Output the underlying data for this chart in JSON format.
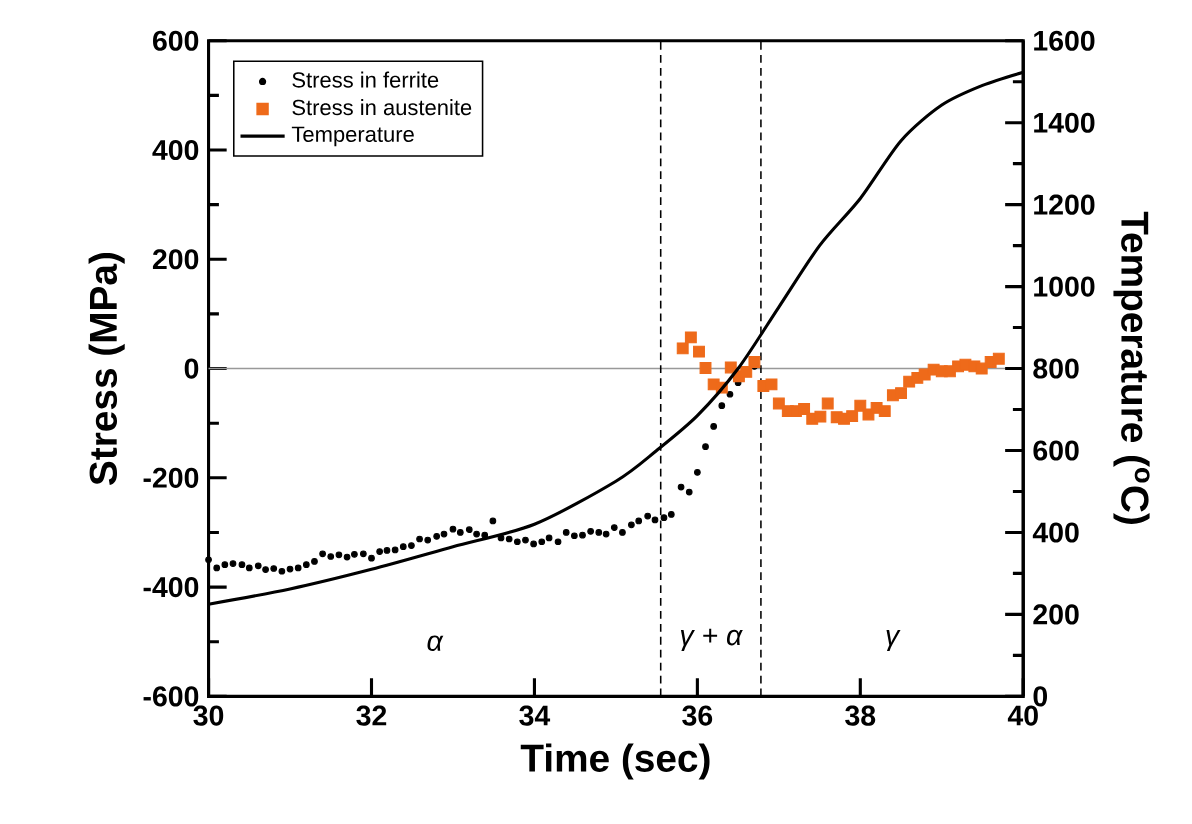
{
  "chart_data": {
    "type": "scatter",
    "xlabel": "Time (sec)",
    "ylabel": "Stress (MPa)",
    "y2label": "Temperature ($^{o}$C)",
    "xlim": [
      30,
      40
    ],
    "xticks": [
      30,
      32,
      34,
      36,
      38,
      40
    ],
    "ylim": [
      -600,
      600
    ],
    "yticks": [
      -600,
      -400,
      -200,
      0,
      200,
      400,
      600
    ],
    "y2lim": [
      0,
      1600
    ],
    "y2ticks": [
      0,
      200,
      400,
      600,
      800,
      1000,
      1200,
      1400,
      1600
    ],
    "legend": "top left",
    "series": [
      {
        "name": "Stress in ferrite",
        "marker": "circle",
        "color": "#000000",
        "x": [
          30.0,
          30.1,
          30.2,
          30.3,
          30.41,
          30.5,
          30.61,
          30.7,
          30.8,
          30.9,
          31.0,
          31.1,
          31.2,
          31.3,
          31.4,
          31.5,
          31.6,
          31.7,
          31.79,
          31.9,
          32.0,
          32.1,
          32.19,
          32.29,
          32.39,
          32.49,
          32.59,
          32.69,
          32.8,
          32.89,
          33.0,
          33.09,
          33.2,
          33.29,
          33.39,
          33.49,
          33.59,
          33.69,
          33.79,
          33.89,
          33.99,
          34.09,
          34.18,
          34.29,
          34.39,
          34.49,
          34.59,
          34.69,
          34.79,
          34.88,
          34.98,
          35.08,
          35.19,
          35.28,
          35.39,
          35.48,
          35.59,
          35.68,
          35.8,
          35.9,
          36.0,
          36.1,
          36.2,
          36.3,
          36.4,
          36.5,
          36.7
        ],
        "values": [
          -350,
          -365,
          -359,
          -357,
          -359,
          -365,
          -361,
          -368,
          -366,
          -371,
          -367,
          -365,
          -359,
          -353,
          -339,
          -344,
          -341,
          -345,
          -340,
          -339,
          -347,
          -335,
          -333,
          -332,
          -326,
          -324,
          -312,
          -314,
          -307,
          -303,
          -294,
          -300,
          -295,
          -303,
          -305,
          -279,
          -310,
          -312,
          -317,
          -314,
          -321,
          -317,
          -310,
          -317,
          -300,
          -306,
          -305,
          -298,
          -300,
          -303,
          -291,
          -300,
          -286,
          -279,
          -270,
          -277,
          -273,
          -267,
          -217,
          -226,
          -190,
          -143,
          -106,
          -68,
          -47,
          -26,
          4
        ]
      },
      {
        "name": "Stress in austenite",
        "marker": "square",
        "color": "#ee6a1a",
        "x": [
          35.82,
          35.92,
          36.02,
          36.1,
          36.2,
          36.3,
          36.41,
          36.51,
          36.6,
          36.7,
          36.81,
          36.91,
          37.0,
          37.11,
          37.21,
          37.31,
          37.41,
          37.51,
          37.6,
          37.71,
          37.8,
          37.9,
          38.0,
          38.1,
          38.2,
          38.3,
          38.4,
          38.5,
          38.6,
          38.7,
          38.79,
          38.9,
          39.0,
          39.1,
          39.2,
          39.29,
          39.4,
          39.49,
          39.6,
          39.7
        ],
        "values": [
          37,
          57,
          31,
          1,
          -29,
          -35,
          2,
          -14,
          -6,
          12,
          -32,
          -29,
          -64,
          -78,
          -78,
          -74,
          -92,
          -88,
          -64,
          -89,
          -92,
          -87,
          -68,
          -84,
          -72,
          -78,
          -49,
          -45,
          -24,
          -17,
          -11,
          -2,
          -5,
          -5,
          4,
          7,
          4,
          0,
          12,
          18
        ]
      },
      {
        "name": "Temperature",
        "type": "line",
        "marker": "none",
        "axis": "y2",
        "color": "#000000",
        "x": [
          30,
          31,
          32,
          33,
          34,
          35,
          35.5,
          36,
          36.5,
          37,
          37.5,
          38,
          38.5,
          39,
          39.5,
          40
        ],
        "values": [
          225,
          262,
          310,
          365,
          420,
          525,
          600,
          685,
          800,
          950,
          1100,
          1215,
          1356,
          1443,
          1491,
          1523
        ]
      }
    ],
    "ref_lines": [
      {
        "axis": "y",
        "value": 0,
        "color": "#999999",
        "line_style": "solid"
      },
      {
        "axis": "x",
        "value": 35.55,
        "color": "#000000",
        "line_style": "dashed"
      },
      {
        "axis": "x",
        "value": 36.78,
        "color": "#000000",
        "line_style": "dashed"
      }
    ],
    "annotations": [
      "α",
      "γ + α",
      "γ"
    ]
  }
}
